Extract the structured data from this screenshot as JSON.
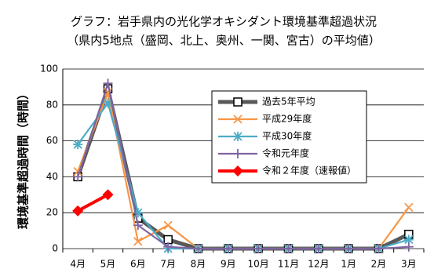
{
  "chart_data": {
    "type": "line",
    "title": "グラフ：岩手県内の光化学オキシダント環境基準超過状況",
    "subtitle": "（県内5地点（盛岡、北上、奥州、一関、宮古）の平均値）",
    "y_label": "環境基準超過時間（時間）",
    "categories": [
      "4月",
      "5月",
      "6月",
      "7月",
      "8月",
      "9月",
      "10月",
      "11月",
      "12月",
      "1月",
      "2月",
      "3月"
    ],
    "series": [
      {
        "name": "過去5年平均",
        "color": "#595959",
        "marker": "square",
        "values": [
          40,
          89,
          17,
          5,
          0,
          0,
          0,
          0,
          0,
          0,
          0,
          8
        ]
      },
      {
        "name": "平成29年度",
        "color": "#f79646",
        "marker": "x",
        "values": [
          43,
          87,
          4,
          13,
          0,
          0,
          0,
          0,
          0,
          0,
          0,
          23
        ]
      },
      {
        "name": "平成30年度",
        "color": "#4bacc6",
        "marker": "star",
        "values": [
          58,
          81,
          20,
          0,
          0,
          0,
          0,
          0,
          0,
          0,
          0,
          5
        ]
      },
      {
        "name": "令和元年度",
        "color": "#8064a2",
        "marker": "plus",
        "values": [
          40,
          92,
          13,
          1,
          0,
          0,
          0,
          0,
          0,
          0,
          0,
          1
        ]
      },
      {
        "name": "令和２年度（速報値）",
        "color": "#ff0000",
        "marker": "diamond",
        "values": [
          21,
          30,
          null,
          null,
          null,
          null,
          null,
          null,
          null,
          null,
          null,
          null
        ]
      }
    ],
    "ylim": [
      0,
      100
    ],
    "yticks": [
      0,
      20,
      40,
      60,
      80,
      100
    ],
    "grid": true,
    "legend": "upper right"
  }
}
